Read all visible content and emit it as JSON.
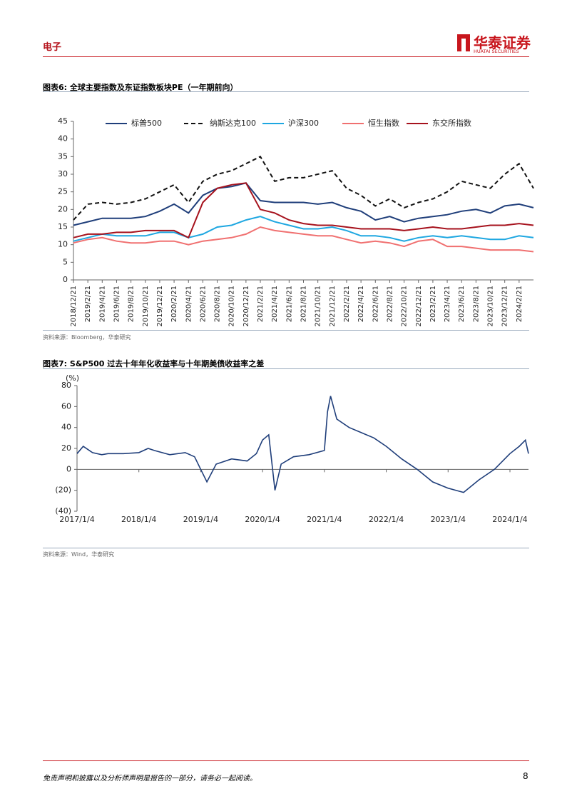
{
  "header": {
    "section": "电子",
    "logo": "华泰证券",
    "logo_sub": "HUATAI SECURITIES"
  },
  "chart_data": [
    {
      "type": "line",
      "label": "图表6:",
      "title": "全球主要指数及东证指数板块PE（一年期前向）",
      "source": "资料来源：Bloomberg，华泰研究",
      "categories": [
        "2018/12/21",
        "2019/2/21",
        "2019/4/21",
        "2019/6/21",
        "2019/8/21",
        "2019/10/21",
        "2019/12/21",
        "2020/2/21",
        "2020/4/21",
        "2020/6/21",
        "2020/8/21",
        "2020/10/21",
        "2020/12/21",
        "2021/2/21",
        "2021/4/21",
        "2021/6/21",
        "2021/8/21",
        "2021/10/21",
        "2021/12/21",
        "2022/2/21",
        "2022/4/21",
        "2022/6/21",
        "2022/8/21",
        "2022/10/21",
        "2022/12/21",
        "2023/2/21",
        "2023/4/21",
        "2023/6/21",
        "2023/8/21",
        "2023/10/21",
        "2023/12/21",
        "2024/2/21",
        null
      ],
      "ylim": [
        0,
        45
      ],
      "yticks": [
        0,
        5,
        10,
        15,
        20,
        25,
        30,
        35,
        40,
        45
      ],
      "series": [
        {
          "name": "标普500",
          "color": "#1f3e7a",
          "dashed": false,
          "values": [
            15.5,
            16.5,
            17.5,
            17.5,
            17.5,
            18,
            19.5,
            21.5,
            19,
            24,
            26,
            26.5,
            27.5,
            22.5,
            22,
            22,
            22,
            21.5,
            22,
            20.5,
            19.5,
            17,
            18,
            16.5,
            17.5,
            18,
            18.5,
            19.5,
            20,
            19,
            21,
            21.5,
            20.5
          ]
        },
        {
          "name": "纳斯达克100",
          "color": "#111111",
          "dashed": true,
          "values": [
            17,
            21.5,
            22,
            21.5,
            22,
            23,
            25,
            27,
            22,
            28,
            30,
            31,
            33,
            35,
            28,
            29,
            29,
            30,
            31,
            26,
            24,
            21,
            23,
            20.5,
            22,
            23,
            25,
            28,
            27,
            26,
            30,
            33,
            26
          ]
        },
        {
          "name": "沪深300",
          "color": "#1ea7e1",
          "dashed": false,
          "values": [
            11,
            12,
            13,
            12.5,
            12.5,
            12.5,
            13.5,
            13.5,
            12,
            13,
            15,
            15.5,
            17,
            18,
            16.5,
            15.5,
            14.5,
            14.5,
            15,
            14,
            12.5,
            12.5,
            12,
            11,
            12,
            12.5,
            12,
            12.5,
            12,
            11.5,
            11.5,
            12.5,
            12
          ]
        },
        {
          "name": "恒生指数",
          "color": "#f07070",
          "dashed": false,
          "values": [
            10.5,
            11.5,
            12,
            11,
            10.5,
            10.5,
            11,
            11,
            10,
            11,
            11.5,
            12,
            13,
            15,
            14,
            13.5,
            13,
            12.5,
            12.5,
            11.5,
            10.5,
            11,
            10.5,
            9.5,
            11,
            11.5,
            9.5,
            9.5,
            9,
            8.5,
            8.5,
            8.5,
            8
          ]
        },
        {
          "name": "东交所指数",
          "color": "#a6121d",
          "dashed": false,
          "values": [
            12,
            13,
            13,
            13.5,
            13.5,
            14,
            14,
            14,
            12,
            22,
            26,
            27,
            27.5,
            20,
            19,
            17,
            16,
            15.5,
            15.5,
            15,
            14.5,
            14.5,
            14.5,
            14,
            14.5,
            15,
            14.5,
            14.5,
            15,
            15.5,
            15.5,
            16,
            15.5
          ]
        }
      ]
    },
    {
      "type": "line",
      "label": "图表7:",
      "title": "S&P500 过去十年年化收益率与十年期美债收益率之差",
      "source": "资料来源：Wind，华泰研究",
      "y_unit": "(%)",
      "color": "#1f3e7a",
      "x": [
        2017,
        2017.1,
        2017.25,
        2017.4,
        2017.5,
        2017.75,
        2018,
        2018.15,
        2018.25,
        2018.5,
        2018.75,
        2018.9,
        2019,
        2019.1,
        2019.25,
        2019.5,
        2019.75,
        2019.9,
        2020,
        2020.1,
        2020.2,
        2020.3,
        2020.5,
        2020.75,
        2021,
        2021.05,
        2021.1,
        2021.2,
        2021.4,
        2021.6,
        2021.8,
        2022,
        2022.25,
        2022.5,
        2022.75,
        2023,
        2023.25,
        2023.5,
        2023.75,
        2024,
        2024.15,
        2024.25,
        2024.3
      ],
      "values": [
        15,
        22,
        16,
        14,
        15,
        15,
        16,
        20,
        18,
        14,
        16,
        12,
        0,
        -12,
        5,
        10,
        8,
        15,
        28,
        33,
        -20,
        5,
        12,
        14,
        18,
        55,
        70,
        48,
        40,
        35,
        30,
        22,
        10,
        0,
        -12,
        -18,
        -22,
        -10,
        0,
        15,
        22,
        28,
        15
      ],
      "xlim": [
        2017,
        2024.3
      ],
      "xticks": [
        {
          "value": 2017,
          "label": "2017/1/4"
        },
        {
          "value": 2018,
          "label": "2018/1/4"
        },
        {
          "value": 2019,
          "label": "2019/1/4"
        },
        {
          "value": 2020,
          "label": "2020/1/4"
        },
        {
          "value": 2021,
          "label": "2021/1/4"
        },
        {
          "value": 2022,
          "label": "2022/1/4"
        },
        {
          "value": 2023,
          "label": "2023/1/4"
        },
        {
          "value": 2024,
          "label": "2024/1/4"
        }
      ],
      "ylim": [
        -40,
        80
      ],
      "yticks": [
        {
          "value": -40,
          "label": "(40)"
        },
        {
          "value": -20,
          "label": "(20)"
        },
        0,
        20,
        40,
        60,
        80
      ]
    }
  ],
  "footer": {
    "disclaimer": "免责声明和披露以及分析师声明是报告的一部分，请务必一起阅读。",
    "page": "8"
  }
}
